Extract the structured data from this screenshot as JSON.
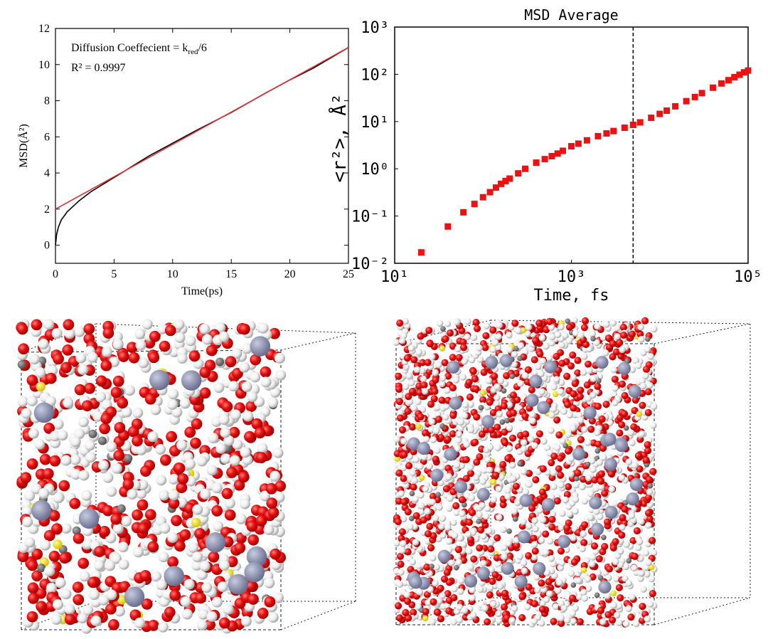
{
  "chart_data": [
    {
      "type": "line",
      "xlabel": "Time(ps)",
      "ylabel": "MSD(Å²)",
      "annotations": [
        [
          "Diffusion Coeffecient = k",
          "red",
          "/6"
        ],
        [
          "R² = 0.9997"
        ]
      ],
      "xlim": [
        0,
        25
      ],
      "xticks": [
        0,
        5,
        10,
        15,
        20,
        25
      ],
      "ylim": [
        -1,
        12
      ],
      "yticks": [
        0,
        2,
        4,
        6,
        8,
        10,
        12
      ],
      "series": [
        {
          "color": "#000000",
          "x": [
            0,
            0.1,
            0.25,
            0.5,
            1,
            1.5,
            2,
            3,
            4,
            5,
            6,
            7,
            8,
            10,
            12,
            15,
            18,
            20,
            22,
            25
          ],
          "values": [
            0,
            0.6,
            1.0,
            1.4,
            1.85,
            2.15,
            2.45,
            2.95,
            3.35,
            3.75,
            4.15,
            4.55,
            4.95,
            5.65,
            6.35,
            7.35,
            8.45,
            9.15,
            9.8,
            10.95
          ]
        },
        {
          "color": "#e03030",
          "x": [
            0,
            25
          ],
          "values": [
            2.0,
            10.95
          ]
        }
      ]
    },
    {
      "type": "scatter",
      "title": "MSD Average",
      "xlabel": "Time, fs",
      "ylabel": "<r²>, Å²",
      "log_x": true,
      "log_y": true,
      "xlim": [
        10,
        100000
      ],
      "xticks": [
        {
          "value": 10,
          "label": "10¹"
        },
        {
          "value": 1000,
          "label": "10³"
        },
        {
          "value": 100000,
          "label": "10⁵"
        }
      ],
      "ylim": [
        0.01,
        1000
      ],
      "yticks": [
        {
          "value": 0.01,
          "label": "10⁻²"
        },
        {
          "value": 0.1,
          "label": "10⁻¹"
        },
        {
          "value": 1,
          "label": "10⁰"
        },
        {
          "value": 10,
          "label": "10¹"
        },
        {
          "value": 100,
          "label": "10²"
        },
        {
          "value": 1000,
          "label": "10³"
        }
      ],
      "vline": 5000,
      "series": [
        {
          "color": "#ee1111",
          "x": [
            20,
            40,
            60,
            80,
            100,
            120,
            140,
            160,
            180,
            200,
            250,
            300,
            400,
            500,
            600,
            700,
            800,
            1000,
            1200,
            1500,
            2000,
            2500,
            3000,
            4000,
            5000,
            6000,
            8000,
            10000,
            12000,
            15000,
            20000,
            25000,
            30000,
            40000,
            50000,
            60000,
            70000,
            80000,
            90000,
            100000
          ],
          "values": [
            0.017,
            0.06,
            0.12,
            0.18,
            0.25,
            0.32,
            0.4,
            0.48,
            0.55,
            0.62,
            0.8,
            1.0,
            1.35,
            1.6,
            1.85,
            2.1,
            2.4,
            3.0,
            3.4,
            4.0,
            4.9,
            5.6,
            6.3,
            7.4,
            8.5,
            9.6,
            12,
            14.5,
            17,
            21,
            27,
            33,
            40,
            52,
            64,
            75,
            87,
            98,
            110,
            120
          ]
        }
      ]
    }
  ]
}
